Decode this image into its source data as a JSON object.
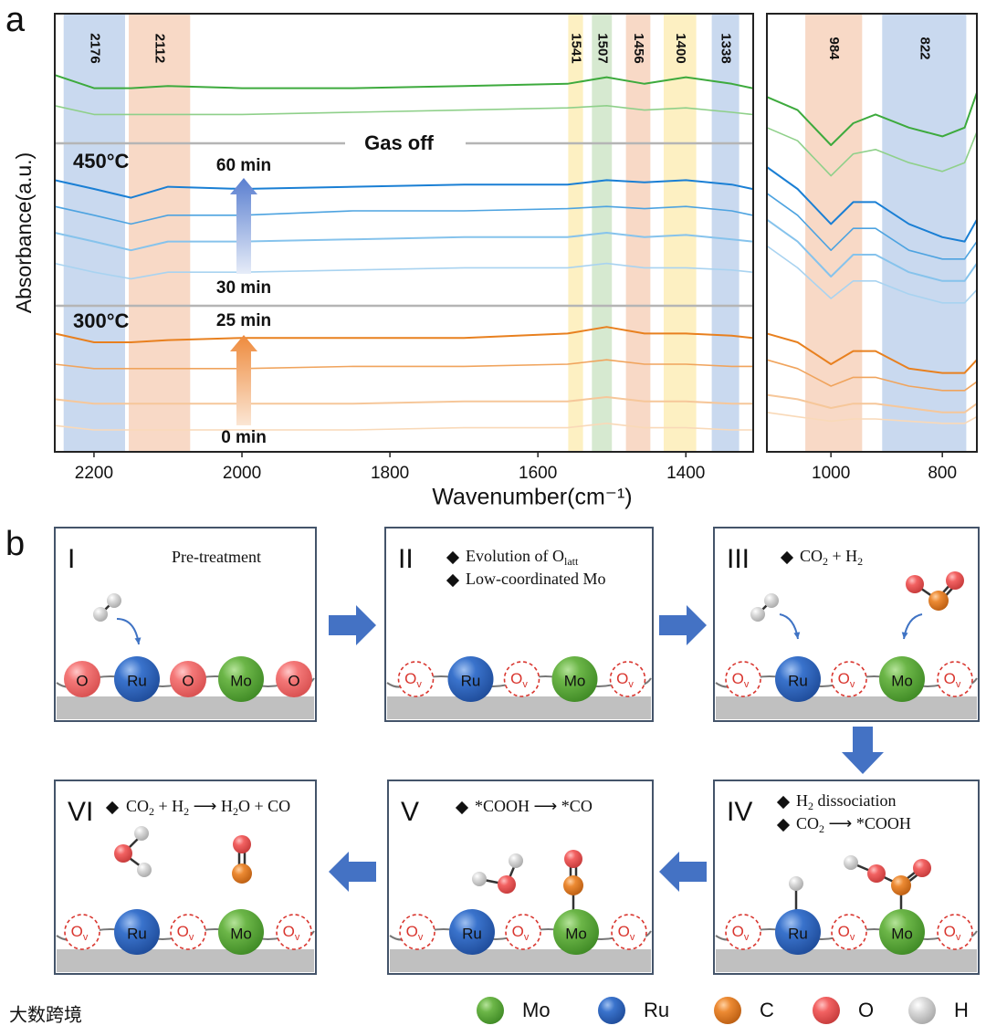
{
  "chart_data": [
    {
      "type": "line",
      "panel_label": "a",
      "ylabel": "Absorbance(a.u.)",
      "xlabel": "Wavenumber(cm⁻¹)",
      "xlim": [
        2253,
        1309
      ],
      "xticks": [
        2200,
        2000,
        1800,
        1600,
        1400
      ],
      "ylim": [
        0,
        100
      ],
      "x": [
        2253,
        2200,
        2150,
        2100,
        2000,
        1850,
        1700,
        1560,
        1507,
        1456,
        1400,
        1338,
        1310
      ],
      "bands": [
        {
          "label": "2176",
          "from": 2241,
          "to": 2158,
          "color": "#c9d9ef"
        },
        {
          "label": "2112",
          "from": 2153,
          "to": 2070,
          "color": "#f8d9c6"
        },
        {
          "label": "1541",
          "from": 1559,
          "to": 1539,
          "color": "#fdf0c2"
        },
        {
          "label": "1507",
          "from": 1527,
          "to": 1500,
          "color": "#d6e9d0"
        },
        {
          "label": "1456",
          "from": 1481,
          "to": 1448,
          "color": "#f8d9c6"
        },
        {
          "label": "1400",
          "from": 1430,
          "to": 1386,
          "color": "#fdf0c2"
        },
        {
          "label": "1338",
          "from": 1365,
          "to": 1328,
          "color": "#c9d9ef"
        }
      ],
      "gas_off": "Gas off",
      "temperatures": [
        "450°C",
        "300°C"
      ],
      "times": [
        "60 min",
        "30 min",
        "25 min",
        "0 min"
      ],
      "series": [
        {
          "color": "#3daa3d",
          "values": [
            86,
            83,
            83,
            83.5,
            83,
            83,
            83.5,
            84,
            85.5,
            84,
            85.5,
            84,
            83
          ]
        },
        {
          "color": "#8fd08a",
          "values": [
            79,
            77,
            77,
            77,
            77,
            77.5,
            78,
            78.5,
            79,
            78,
            78.5,
            77.5,
            77
          ]
        },
        {
          "color": "#1a7fd4",
          "values": [
            62,
            60,
            58,
            60.5,
            60,
            60.5,
            61,
            61,
            62,
            61.5,
            62,
            61,
            60
          ]
        },
        {
          "color": "#4da3e0",
          "values": [
            56,
            54,
            52,
            54,
            54,
            55,
            55,
            55.5,
            56,
            55.5,
            56,
            55,
            54
          ]
        },
        {
          "color": "#86c3ec",
          "values": [
            50,
            48,
            46,
            48,
            48,
            48.5,
            49,
            49,
            50,
            49,
            49.5,
            48.5,
            48
          ]
        },
        {
          "color": "#a9d3f0",
          "values": [
            43,
            41,
            39.5,
            41,
            41,
            41.5,
            42,
            42,
            43,
            42,
            42,
            41.5,
            41
          ]
        },
        {
          "color": "#e8801f",
          "values": [
            27,
            25,
            25,
            25.5,
            26,
            26,
            26,
            27,
            28.5,
            27,
            27,
            26.5,
            26
          ]
        },
        {
          "color": "#f0a45d",
          "values": [
            20,
            19,
            19,
            19,
            19,
            19.5,
            19.5,
            20,
            21,
            20,
            20,
            19.5,
            19.5
          ]
        },
        {
          "color": "#f6c79a",
          "values": [
            12,
            11,
            11,
            11,
            11,
            11,
            11.5,
            11.5,
            12.5,
            11.5,
            11.5,
            11,
            11
          ]
        },
        {
          "color": "#f9d9b8",
          "values": [
            6,
            5,
            5,
            5,
            5,
            5,
            5.5,
            5.5,
            6.5,
            5.5,
            5.5,
            5,
            5
          ]
        }
      ]
    },
    {
      "type": "line",
      "xlim": [
        1115,
        738
      ],
      "xticks": [
        1000,
        800
      ],
      "ylim": [
        0,
        100
      ],
      "x": [
        1115,
        1060,
        1000,
        960,
        920,
        860,
        800,
        760,
        738
      ],
      "bands": [
        {
          "label": "984",
          "from": 1046,
          "to": 944,
          "color": "#f8d9c6"
        },
        {
          "label": "822",
          "from": 908,
          "to": 757,
          "color": "#c9d9ef"
        }
      ],
      "series": [
        {
          "color": "#3daa3d",
          "values": [
            81,
            78,
            70,
            75,
            77,
            74,
            72,
            74,
            82
          ]
        },
        {
          "color": "#8fd08a",
          "values": [
            74,
            71,
            63,
            68,
            69,
            66,
            64,
            66,
            73
          ]
        },
        {
          "color": "#1a7fd4",
          "values": [
            65,
            60,
            52,
            57,
            57,
            52,
            49,
            48,
            53
          ]
        },
        {
          "color": "#4da3e0",
          "values": [
            59,
            54,
            46,
            51,
            51,
            46,
            44,
            44,
            48
          ]
        },
        {
          "color": "#86c3ec",
          "values": [
            53,
            48,
            40,
            45,
            45,
            41,
            39,
            39,
            43
          ]
        },
        {
          "color": "#a9d3f0",
          "values": [
            47,
            42,
            35,
            39,
            39,
            36,
            34,
            34,
            37
          ]
        },
        {
          "color": "#e8801f",
          "values": [
            27,
            25,
            20,
            23,
            23,
            19,
            18,
            18,
            21
          ]
        },
        {
          "color": "#f0a45d",
          "values": [
            21,
            19,
            15,
            17,
            17,
            15,
            14,
            14,
            16
          ]
        },
        {
          "color": "#f6c79a",
          "values": [
            13,
            12,
            10,
            11,
            11,
            10,
            9,
            9,
            11
          ]
        },
        {
          "color": "#f9d9b8",
          "values": [
            9,
            8,
            7,
            7.5,
            7.5,
            7,
            6.5,
            6.5,
            8
          ]
        }
      ]
    }
  ],
  "scheme": {
    "panel_label": "b",
    "steps": [
      {
        "numeral": "I",
        "lines": [
          [
            "Pre-treatment"
          ]
        ],
        "atoms": [
          {
            "label": "O"
          },
          {
            "label": "Ru"
          },
          {
            "label": "O"
          },
          {
            "label": "Mo"
          },
          {
            "label": "O"
          }
        ]
      },
      {
        "numeral": "II",
        "lines": [
          [
            "Evolution of O",
            {
              "sub": "latt"
            }
          ],
          [
            "Low-coordinated Mo"
          ]
        ],
        "atoms": [
          {
            "label": "O",
            "sub": "v"
          },
          {
            "label": "Ru"
          },
          {
            "label": "O",
            "sub": "v"
          },
          {
            "label": "Mo"
          },
          {
            "label": "O",
            "sub": "v"
          }
        ]
      },
      {
        "numeral": "III",
        "lines": [
          [
            "CO",
            {
              "sub": "2"
            },
            " + H",
            {
              "sub": "2"
            }
          ]
        ],
        "atoms": [
          {
            "label": "O",
            "sub": "v"
          },
          {
            "label": "Ru"
          },
          {
            "label": "O",
            "sub": "v"
          },
          {
            "label": "Mo"
          },
          {
            "label": "O",
            "sub": "v"
          }
        ]
      },
      {
        "numeral": "IV",
        "lines": [
          [
            "H",
            {
              "sub": "2"
            },
            " dissociation"
          ],
          [
            "CO",
            {
              "sub": "2"
            },
            " ⟶ *COOH"
          ]
        ],
        "atoms": [
          {
            "label": "O",
            "sub": "v"
          },
          {
            "label": "Ru"
          },
          {
            "label": "O",
            "sub": "v"
          },
          {
            "label": "Mo"
          },
          {
            "label": "O",
            "sub": "v"
          }
        ]
      },
      {
        "numeral": "V",
        "lines": [
          [
            "*COOH ⟶ *CO"
          ]
        ],
        "atoms": [
          {
            "label": "O",
            "sub": "v"
          },
          {
            "label": "Ru"
          },
          {
            "label": "O",
            "sub": "v"
          },
          {
            "label": "Mo"
          },
          {
            "label": "O",
            "sub": "v"
          }
        ]
      },
      {
        "numeral": "VI",
        "lines": [
          [
            "CO",
            {
              "sub": "2"
            },
            " + H",
            {
              "sub": "2"
            },
            " ⟶ H",
            {
              "sub": "2"
            },
            "O + CO"
          ]
        ],
        "atoms": [
          {
            "label": "O",
            "sub": "v"
          },
          {
            "label": "Ru"
          },
          {
            "label": "O",
            "sub": "v"
          },
          {
            "label": "Mo"
          },
          {
            "label": "O",
            "sub": "v"
          }
        ]
      }
    ],
    "legend": [
      "Mo",
      "Ru",
      "C",
      "O",
      "H"
    ]
  },
  "watermark": "大数跨境"
}
